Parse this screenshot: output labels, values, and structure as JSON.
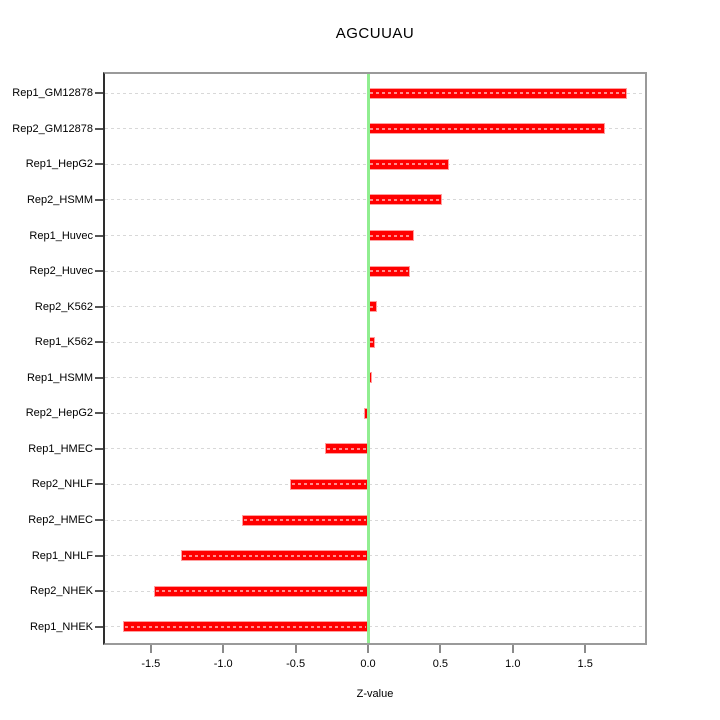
{
  "title": "AGCUUAU",
  "chart_data": {
    "type": "bar",
    "orientation": "horizontal",
    "title": "AGCUUAU",
    "xlabel": "Z-value",
    "ylabel": "",
    "categories": [
      "Rep1_GM12878",
      "Rep2_GM12878",
      "Rep1_HepG2",
      "Rep2_HSMM",
      "Rep1_Huvec",
      "Rep2_Huvec",
      "Rep2_K562",
      "Rep1_K562",
      "Rep1_HSMM",
      "Rep2_HepG2",
      "Rep1_HMEC",
      "Rep2_NHLF",
      "Rep2_HMEC",
      "Rep1_NHLF",
      "Rep2_NHEK",
      "Rep1_NHEK"
    ],
    "values": [
      1.79,
      1.64,
      0.56,
      0.51,
      0.32,
      0.29,
      0.06,
      0.05,
      0.03,
      -0.03,
      -0.3,
      -0.54,
      -0.87,
      -1.29,
      -1.48,
      -1.69
    ],
    "x_ticks": [
      -1.5,
      -1.0,
      -0.5,
      0.0,
      0.5,
      1.0,
      1.5
    ],
    "x_tick_labels": [
      "-1.5",
      "-1.0",
      "-0.5",
      "0.0",
      "0.5",
      "1.0",
      "1.5"
    ],
    "xlim": [
      -1.83,
      1.93
    ],
    "zero_line": 0,
    "grid": "horizontal dotted line at each category",
    "legend": "none",
    "colors": {
      "bar_fill": "#ff0000",
      "bar_border": "#ff9e9e",
      "zero_line": "#90ee90",
      "grid": "#d8d8d8",
      "box_border": "#9a9a9a",
      "axis_dark": "#2e2e2e",
      "text": "#000000",
      "background": "#ffffff"
    }
  }
}
